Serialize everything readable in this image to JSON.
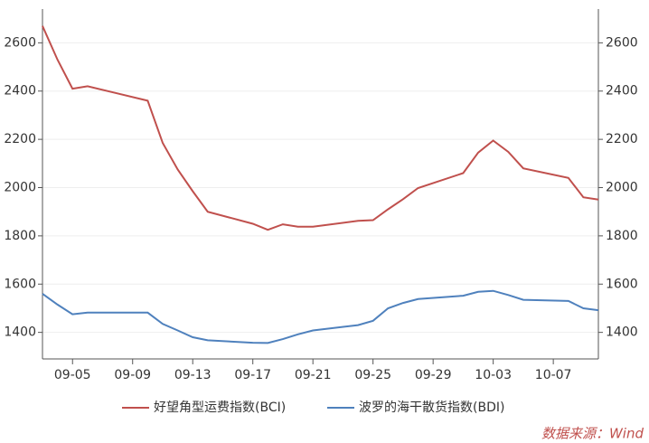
{
  "chart_data": {
    "type": "line",
    "x": [
      "09-03",
      "09-04",
      "09-05",
      "09-06",
      "09-10",
      "09-11",
      "09-12",
      "09-13",
      "09-14",
      "09-17",
      "09-18",
      "09-19",
      "09-20",
      "09-21",
      "09-24",
      "09-25",
      "09-26",
      "09-27",
      "09-28",
      "10-01",
      "10-02",
      "10-03",
      "10-04",
      "10-05",
      "10-08",
      "10-09",
      "10-10"
    ],
    "xticks": [
      "09-05",
      "09-09",
      "09-13",
      "09-17",
      "09-21",
      "09-25",
      "09-29",
      "10-03",
      "10-07"
    ],
    "series": [
      {
        "name": "好望角型运费指数(BCI)",
        "color": "#c0504d",
        "values": [
          2670,
          2530,
          2410,
          2420,
          2360,
          2185,
          2075,
          1985,
          1900,
          1850,
          1825,
          1848,
          1838,
          1838,
          1862,
          1865,
          1910,
          1952,
          1998,
          2060,
          2145,
          2195,
          2148,
          2080,
          2040,
          1960,
          1950
        ]
      },
      {
        "name": "波罗的海干散货指数(BDI)",
        "color": "#4f81bd",
        "values": [
          1560,
          1515,
          1475,
          1482,
          1482,
          1435,
          1408,
          1380,
          1367,
          1357,
          1356,
          1372,
          1392,
          1408,
          1430,
          1448,
          1500,
          1522,
          1538,
          1552,
          1568,
          1572,
          1555,
          1535,
          1530,
          1500,
          1492
        ]
      }
    ],
    "ylim": [
      1290,
      2740
    ],
    "yticks": [
      1400,
      1600,
      1800,
      2000,
      2200,
      2400,
      2600
    ],
    "y2lim": [
      1290,
      2740
    ],
    "y2ticks": [
      1400,
      1600,
      1800,
      2000,
      2200,
      2400,
      2600
    ],
    "grid": true,
    "source": "数据来源：Wind"
  }
}
